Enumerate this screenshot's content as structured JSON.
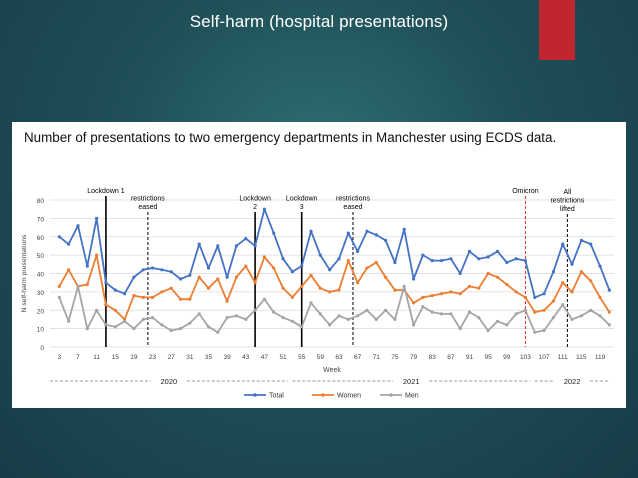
{
  "slide": {
    "title": "Self-harm (hospital presentations)"
  },
  "chart_data": {
    "type": "line",
    "title": "Number of presentations to two emergency departments in Manchester using ECDS data.",
    "xlabel": "Week",
    "ylabel": "N self-harm presentations",
    "ylim": [
      0,
      80
    ],
    "y_ticks": [
      0,
      10,
      20,
      30,
      40,
      50,
      60,
      70,
      80
    ],
    "x_ticks": [
      3,
      7,
      11,
      15,
      19,
      23,
      27,
      31,
      35,
      39,
      43,
      47,
      51,
      55,
      59,
      63,
      67,
      71,
      75,
      79,
      83,
      87,
      91,
      95,
      99,
      103,
      107,
      111,
      115,
      119
    ],
    "x_start": 3,
    "x_step": 2,
    "grid": true,
    "legend_position": "bottom",
    "series": [
      {
        "name": "Total",
        "color": "#4472c4",
        "values": [
          60,
          56,
          66,
          44,
          70,
          35,
          31,
          29,
          38,
          42,
          43,
          42,
          41,
          37,
          39,
          56,
          43,
          55,
          38,
          55,
          59,
          55,
          75,
          62,
          48,
          41,
          44,
          63,
          50,
          42,
          48,
          62,
          52,
          63,
          61,
          58,
          46,
          64,
          37,
          50,
          47,
          47,
          48,
          40,
          52,
          48,
          49,
          52,
          46,
          48,
          47,
          27,
          29,
          41,
          56,
          45,
          58,
          56,
          44,
          31
        ]
      },
      {
        "name": "Women",
        "color": "#ed7d31",
        "values": [
          33,
          42,
          33,
          34,
          50,
          23,
          20,
          15,
          28,
          27,
          27,
          30,
          32,
          26,
          26,
          38,
          32,
          37,
          25,
          38,
          44,
          35,
          49,
          43,
          32,
          27,
          33,
          39,
          32,
          30,
          31,
          47,
          35,
          43,
          46,
          38,
          31,
          31,
          24,
          27,
          28,
          29,
          30,
          29,
          33,
          32,
          40,
          38,
          34,
          30,
          27,
          19,
          20,
          25,
          35,
          30,
          41,
          36,
          27,
          19
        ]
      },
      {
        "name": "Men",
        "color": "#a5a5a5",
        "values": [
          27,
          14,
          33,
          10,
          20,
          12,
          11,
          14,
          10,
          15,
          16,
          12,
          9,
          10,
          13,
          18,
          11,
          8,
          16,
          17,
          15,
          20,
          26,
          19,
          16,
          14,
          11,
          24,
          18,
          12,
          17,
          15,
          17,
          20,
          15,
          20,
          15,
          33,
          12,
          22,
          19,
          18,
          18,
          10,
          19,
          16,
          9,
          14,
          12,
          18,
          20,
          8,
          9,
          16,
          23,
          15,
          17,
          20,
          17,
          12
        ]
      }
    ],
    "annotations": [
      {
        "week": 13,
        "lines": [
          "Lockdown 1"
        ],
        "style": "solid",
        "color": "#000000"
      },
      {
        "week": 22,
        "lines": [
          "restrictions",
          "eased"
        ],
        "style": "dashed",
        "color": "#000000"
      },
      {
        "week": 45,
        "lines": [
          "Lockdown",
          "2"
        ],
        "style": "solid",
        "color": "#000000"
      },
      {
        "week": 55,
        "lines": [
          "Lockdown",
          "3"
        ],
        "style": "solid",
        "color": "#000000"
      },
      {
        "week": 66,
        "lines": [
          "restrictions",
          "eased"
        ],
        "style": "dashed",
        "color": "#000000"
      },
      {
        "week": 103,
        "lines": [
          "Omicron"
        ],
        "style": "dashed",
        "color": "#e02b2b"
      },
      {
        "week": 112,
        "lines": [
          "All",
          "restrictions",
          "lifted"
        ],
        "style": "dashed",
        "color": "#000000"
      }
    ],
    "years": [
      {
        "label": "2020",
        "from_week": 1,
        "to_week": 52
      },
      {
        "label": "2021",
        "from_week": 53,
        "to_week": 104
      },
      {
        "label": "2022",
        "from_week": 105,
        "to_week": 121
      }
    ]
  }
}
